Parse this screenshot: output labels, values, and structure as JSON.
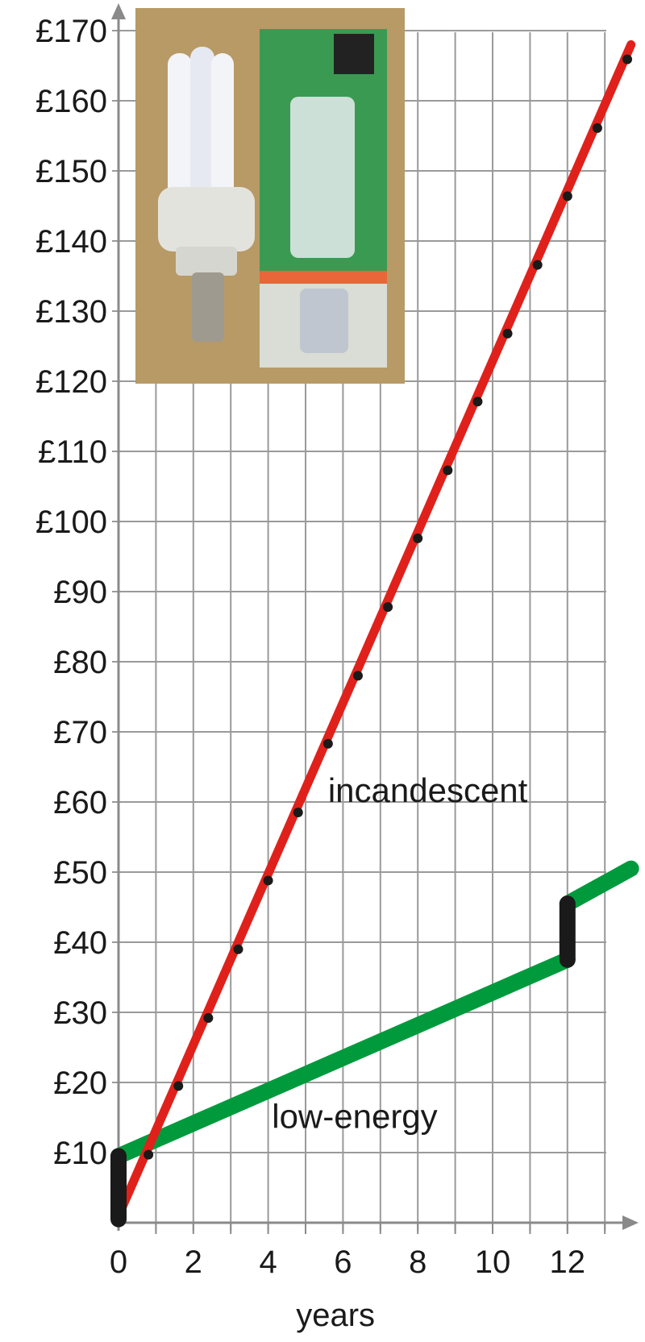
{
  "chart_data": {
    "type": "line",
    "xlabel": "years",
    "ylabel": "",
    "xlim": [
      0,
      13.7
    ],
    "ylim": [
      0,
      170
    ],
    "x_ticks": [
      0,
      2,
      4,
      6,
      8,
      10,
      12
    ],
    "y_ticks": [
      10,
      20,
      30,
      40,
      50,
      60,
      70,
      80,
      90,
      100,
      110,
      120,
      130,
      140,
      150,
      160,
      170
    ],
    "y_tick_labels": [
      "£10",
      "£20",
      "£30",
      "£40",
      "£50",
      "£60",
      "£70",
      "£80",
      "£90",
      "£100",
      "£110",
      "£120",
      "£130",
      "£140",
      "£150",
      "£160",
      "£170"
    ],
    "grid": true,
    "series": [
      {
        "name": "incandescent",
        "color": "#e0211b",
        "x": [
          0,
          13.7
        ],
        "y": [
          1,
          168
        ],
        "marker_x": [
          0.8,
          1.6,
          2.4,
          3.2,
          4.0,
          4.8,
          5.6,
          6.4,
          7.2,
          8.0,
          8.8,
          9.6,
          10.4,
          11.2,
          12.0,
          12.8,
          13.6
        ],
        "marker_y": [
          9.7,
          19.5,
          29.2,
          39.0,
          48.8,
          58.5,
          68.3,
          78.0,
          87.8,
          97.6,
          107.3,
          117.1,
          126.8,
          136.6,
          146.4,
          156.1,
          165.9
        ]
      },
      {
        "name": "low-energy",
        "color": "#009a3d",
        "x": [
          0,
          12,
          12,
          13.7
        ],
        "y": [
          9.5,
          37.5,
          45.5,
          50.5
        ],
        "steps": [
          {
            "x": 0,
            "from": 0.5,
            "to": 9.5
          },
          {
            "x": 12,
            "from": 37.5,
            "to": 45.5
          }
        ]
      }
    ],
    "photo": {
      "description_icon": "compact-fluorescent-bulb-and-box-photo",
      "background": "#b89a66",
      "box_color": "#3a9a52"
    }
  }
}
